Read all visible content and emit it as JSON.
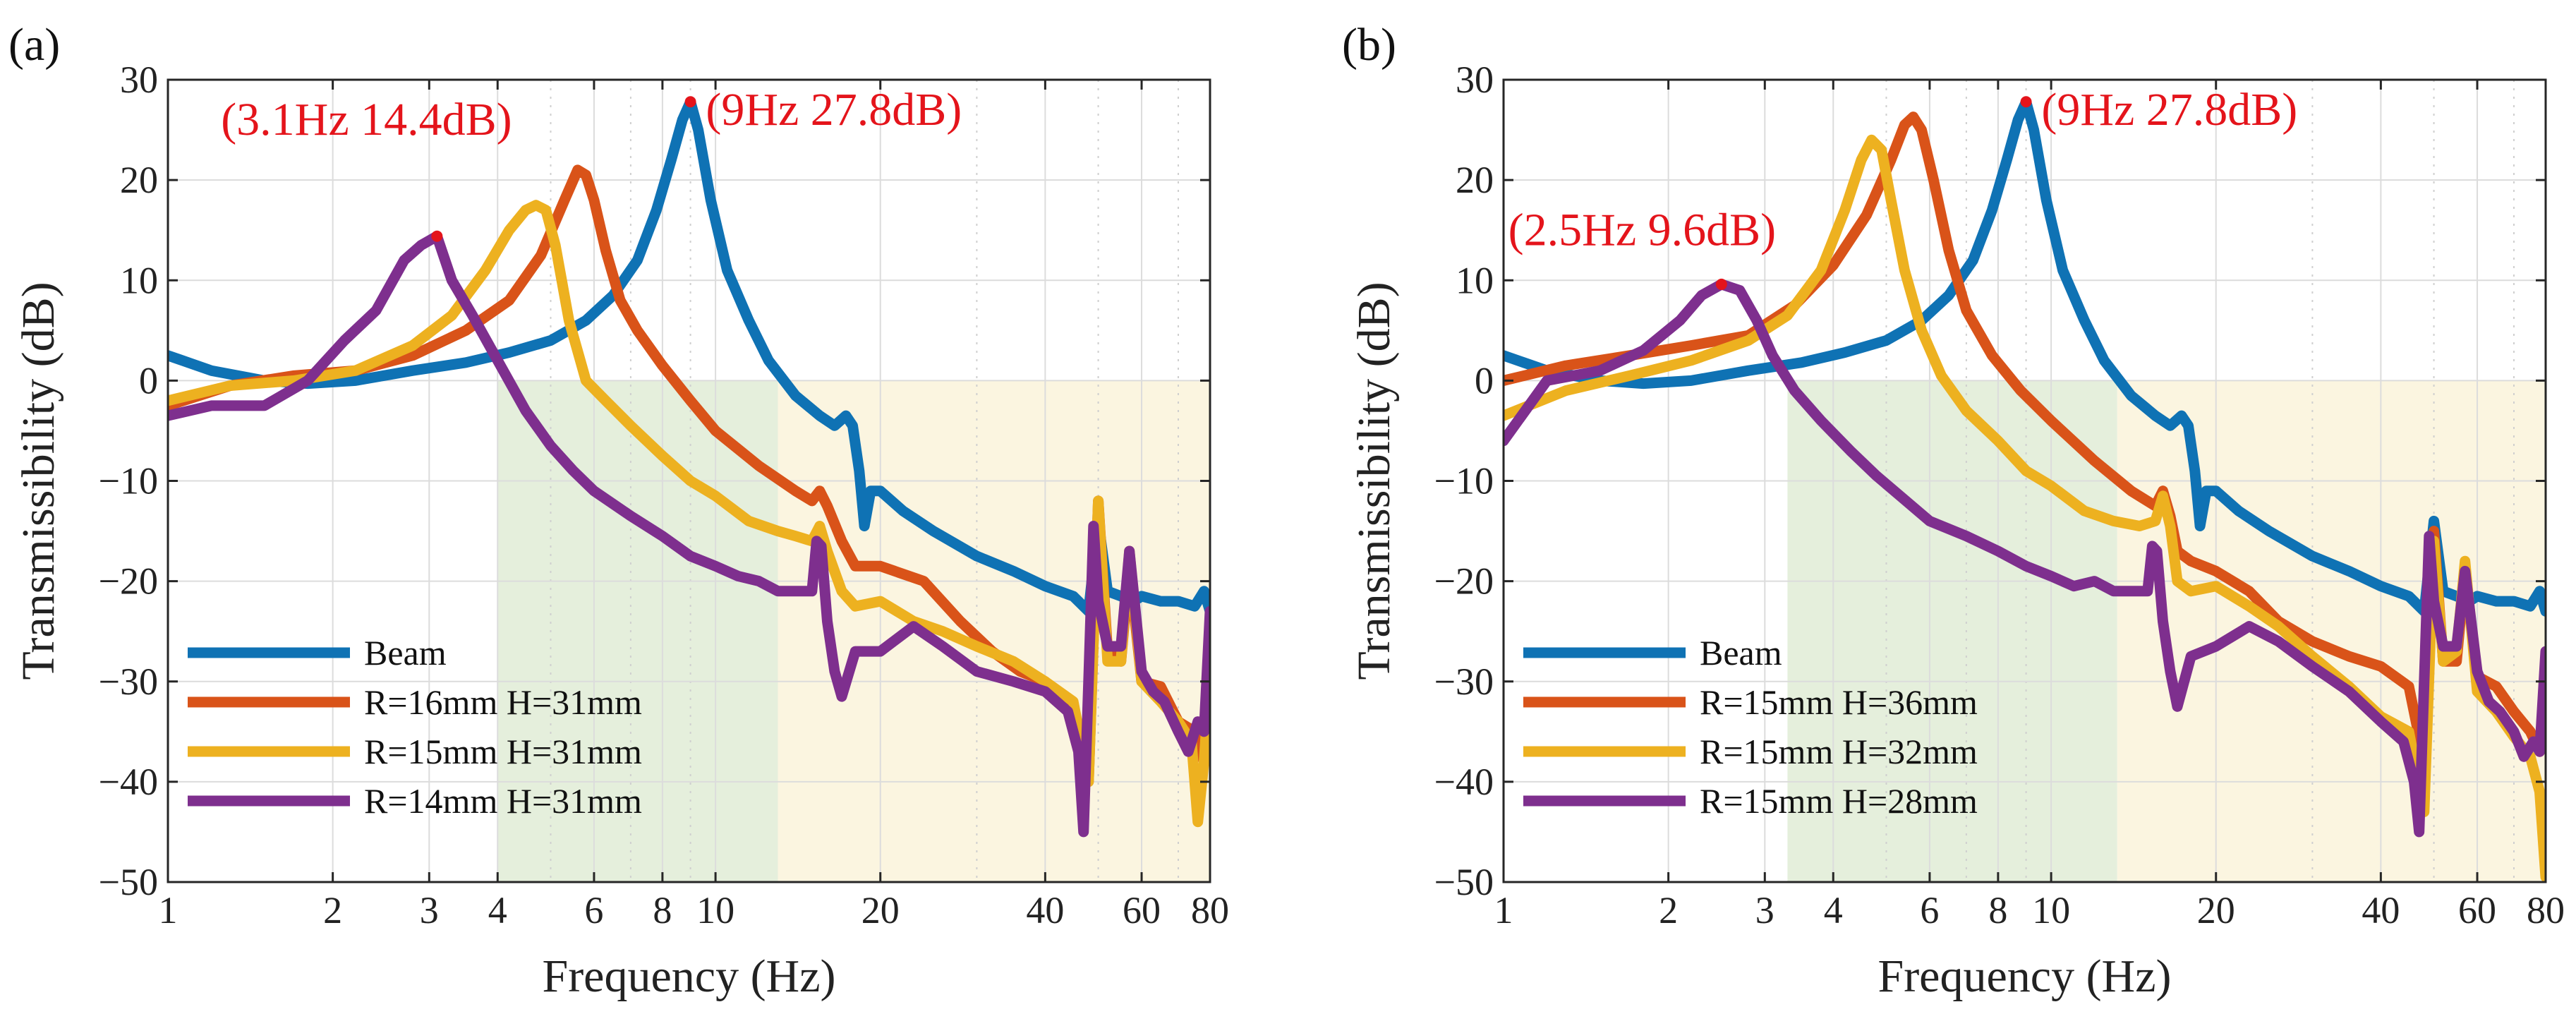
{
  "colors": {
    "beam": "#0f72b4",
    "orange": "#d95319",
    "yellow": "#edb120",
    "purple": "#7e2f8e",
    "annotation": "#e4141b",
    "green_band": "#e5efdc",
    "yellow_band": "#fbf5e0"
  },
  "chart_data": [
    {
      "panel": "(a)",
      "type": "line",
      "xscale": "log",
      "xlim": [
        1,
        80
      ],
      "ylim": [
        -50,
        30
      ],
      "xlabel": "Frequency (Hz)",
      "ylabel": "Transmissibility (dB)",
      "xticks": [
        1,
        2,
        3,
        4,
        6,
        8,
        10,
        20,
        40,
        60,
        80
      ],
      "xtick_labels": [
        "1",
        "2",
        "3",
        "4",
        "6",
        "8",
        "10",
        "20",
        "40",
        "60",
        "80"
      ],
      "yticks": [
        -50,
        -40,
        -30,
        -20,
        -10,
        0,
        10,
        20,
        30
      ],
      "ytick_labels": [
        "−50",
        "−40",
        "−30",
        "−20",
        "−10",
        "0",
        "10",
        "20",
        "30"
      ],
      "grid": true,
      "legend_position": "bottom-left",
      "bands": [
        {
          "x0": 4.0,
          "x1": 13.0,
          "y0": -50,
          "y1": 0,
          "color": "green_band"
        },
        {
          "x0": 13.0,
          "x1": 80,
          "y0": -50,
          "y1": 0,
          "color": "yellow_band"
        }
      ],
      "annotations": [
        {
          "text": "(3.1Hz 14.4dB)",
          "x": 3.1,
          "y": 14.4,
          "label_at": [
            1.25,
            24.5
          ]
        },
        {
          "text": "(9Hz 27.8dB)",
          "x": 9.0,
          "y": 27.8,
          "label_at": [
            9.6,
            25.5
          ]
        }
      ],
      "series": [
        {
          "name": "Beam",
          "color": "beam",
          "x": [
            1,
            1.2,
            1.5,
            1.8,
            2.2,
            2.8,
            3.5,
            4.2,
            5,
            5.8,
            6.5,
            7.2,
            7.8,
            8.3,
            8.7,
            9.0,
            9.3,
            9.8,
            10.5,
            11.5,
            12.5,
            14,
            15.5,
            16.5,
            17.3,
            17.8,
            18.3,
            18.7,
            19.2,
            20,
            22,
            25,
            30,
            35,
            40,
            45,
            48,
            50,
            52,
            55,
            58,
            60,
            65,
            70,
            75,
            78,
            80
          ],
          "y": [
            2.5,
            1.0,
            0,
            -0.3,
            0,
            1.0,
            1.8,
            2.8,
            4.0,
            6.0,
            8.5,
            12.0,
            17.0,
            22.0,
            26.0,
            27.8,
            25.0,
            18.0,
            11.0,
            6.0,
            2.0,
            -1.5,
            -3.5,
            -4.5,
            -3.5,
            -4.5,
            -9.0,
            -14.5,
            -11.0,
            -11.0,
            -13.0,
            -15.0,
            -17.5,
            -19.0,
            -20.5,
            -21.5,
            -23.0,
            -14.0,
            -21.0,
            -21.5,
            -22.0,
            -21.5,
            -22.0,
            -22.0,
            -22.5,
            -21.0,
            -23.0
          ]
        },
        {
          "name": "R=16mm H=31mm",
          "color": "orange",
          "x": [
            1,
            1.3,
            1.7,
            2.2,
            2.8,
            3.5,
            4.2,
            4.8,
            5.3,
            5.6,
            5.8,
            6.0,
            6.3,
            6.7,
            7.2,
            8.0,
            9.0,
            10,
            12,
            14,
            15,
            15.5,
            16,
            17,
            18,
            20,
            24,
            28,
            32,
            36,
            40,
            44,
            46,
            48,
            50,
            52,
            55,
            57,
            60,
            65,
            70,
            75,
            78,
            80
          ],
          "y": [
            -2.5,
            -0.5,
            0.5,
            1.0,
            2.5,
            5.0,
            8.0,
            12.5,
            18.0,
            21.0,
            20.5,
            18.0,
            13.0,
            8.0,
            5.0,
            1.5,
            -2.0,
            -5.0,
            -8.5,
            -11.0,
            -12.0,
            -11.0,
            -12.5,
            -16.0,
            -18.5,
            -18.5,
            -20.0,
            -24.0,
            -27.0,
            -29.0,
            -30.0,
            -33.0,
            -36.0,
            -40.0,
            -12.0,
            -27.0,
            -28.0,
            -18.5,
            -30.0,
            -30.5,
            -34.0,
            -35.0,
            -38.0,
            -29.0
          ]
        },
        {
          "name": "R=15mm H=31mm",
          "color": "yellow",
          "x": [
            1,
            1.3,
            1.7,
            2.2,
            2.8,
            3.3,
            3.8,
            4.2,
            4.5,
            4.7,
            4.9,
            5.1,
            5.4,
            5.8,
            6.3,
            7.0,
            8.0,
            9.0,
            10,
            11.5,
            13,
            14,
            15,
            15.5,
            16,
            17,
            18,
            20,
            23,
            26,
            30,
            35,
            40,
            45,
            48,
            50,
            52,
            55,
            57,
            60,
            65,
            70,
            74,
            76,
            78,
            80
          ],
          "y": [
            -2.0,
            -0.5,
            0,
            1.0,
            3.5,
            6.5,
            11.0,
            15.0,
            17.0,
            17.5,
            17.0,
            13.5,
            6.0,
            0,
            -2.0,
            -4.5,
            -7.5,
            -10.0,
            -11.5,
            -14.0,
            -15.0,
            -15.5,
            -16.0,
            -14.5,
            -17.0,
            -21.0,
            -22.5,
            -22.0,
            -24.0,
            -25.0,
            -26.5,
            -28.0,
            -30.0,
            -32.0,
            -40.0,
            -12.0,
            -28.0,
            -28.0,
            -17.0,
            -30.0,
            -32.0,
            -34.0,
            -36.0,
            -44.0,
            -38.0,
            -29.0
          ]
        },
        {
          "name": "R=14mm H=31mm",
          "color": "purple",
          "x": [
            1,
            1.2,
            1.5,
            1.8,
            2.1,
            2.4,
            2.7,
            2.9,
            3.1,
            3.3,
            3.6,
            4.0,
            4.5,
            5.0,
            5.5,
            6.0,
            7.0,
            8.0,
            9.0,
            10,
            11,
            12,
            13,
            14,
            15,
            15.3,
            15.6,
            16,
            16.5,
            17,
            18,
            20,
            23,
            26,
            30,
            35,
            40,
            44,
            46,
            47,
            48,
            49,
            50,
            52,
            55,
            57,
            60,
            63,
            66,
            70,
            73,
            76,
            78,
            80
          ],
          "y": [
            -3.5,
            -2.5,
            -2.5,
            0,
            4.0,
            7.0,
            12.0,
            13.5,
            14.4,
            10.0,
            6.5,
            2.0,
            -3.0,
            -6.5,
            -9.0,
            -11.0,
            -13.5,
            -15.5,
            -17.5,
            -18.5,
            -19.5,
            -20.0,
            -21.0,
            -21.0,
            -21.0,
            -16.0,
            -16.5,
            -24.0,
            -29.0,
            -31.5,
            -27.0,
            -27.0,
            -24.5,
            -26.5,
            -29.0,
            -30.0,
            -31.0,
            -33.0,
            -37.0,
            -45.0,
            -30.0,
            -14.5,
            -22.0,
            -26.5,
            -26.5,
            -17.0,
            -29.0,
            -31.0,
            -32.0,
            -35.0,
            -37.0,
            -34.0,
            -35.0,
            -23.0
          ]
        }
      ]
    },
    {
      "panel": "(b)",
      "type": "line",
      "xscale": "log",
      "xlim": [
        1,
        80
      ],
      "ylim": [
        -50,
        30
      ],
      "xlabel": "Frequency (Hz)",
      "ylabel": "Transmissibility (dB)",
      "xticks": [
        1,
        2,
        3,
        4,
        6,
        8,
        10,
        20,
        40,
        60,
        80
      ],
      "xtick_labels": [
        "1",
        "2",
        "3",
        "4",
        "6",
        "8",
        "10",
        "20",
        "40",
        "60",
        "80"
      ],
      "yticks": [
        -50,
        -40,
        -30,
        -20,
        -10,
        0,
        10,
        20,
        30
      ],
      "ytick_labels": [
        "−50",
        "−40",
        "−30",
        "−20",
        "−10",
        "0",
        "10",
        "20",
        "30"
      ],
      "grid": true,
      "legend_position": "bottom-left",
      "bands": [
        {
          "x0": 3.3,
          "x1": 13.2,
          "y0": -50,
          "y1": 0,
          "color": "green_band"
        },
        {
          "x0": 13.2,
          "x1": 80,
          "y0": -50,
          "y1": 0,
          "color": "yellow_band"
        }
      ],
      "annotations": [
        {
          "text": "(2.5Hz 9.6dB)",
          "x": 2.5,
          "y": 9.6,
          "label_at": [
            1.02,
            13.5
          ]
        },
        {
          "text": "(9Hz 27.8dB)",
          "x": 9.0,
          "y": 27.8,
          "label_at": [
            9.6,
            25.5
          ]
        }
      ],
      "series": [
        {
          "name": "Beam",
          "color": "beam",
          "x": [
            1,
            1.2,
            1.5,
            1.8,
            2.2,
            2.8,
            3.5,
            4.2,
            5,
            5.8,
            6.5,
            7.2,
            7.8,
            8.3,
            8.7,
            9.0,
            9.3,
            9.8,
            10.5,
            11.5,
            12.5,
            14,
            15.5,
            16.5,
            17.3,
            17.8,
            18.3,
            18.7,
            19.2,
            20,
            22,
            25,
            30,
            35,
            40,
            45,
            48,
            50,
            52,
            55,
            58,
            60,
            65,
            70,
            75,
            78,
            80
          ],
          "y": [
            2.5,
            1.0,
            0,
            -0.3,
            0,
            1.0,
            1.8,
            2.8,
            4.0,
            6.0,
            8.5,
            12.0,
            17.0,
            22.0,
            26.0,
            27.8,
            25.0,
            18.0,
            11.0,
            6.0,
            2.0,
            -1.5,
            -3.5,
            -4.5,
            -3.5,
            -4.5,
            -9.0,
            -14.5,
            -11.0,
            -11.0,
            -13.0,
            -15.0,
            -17.5,
            -19.0,
            -20.5,
            -21.5,
            -23.0,
            -14.0,
            -21.0,
            -21.5,
            -22.0,
            -21.5,
            -22.0,
            -22.0,
            -22.5,
            -21.0,
            -23.0
          ]
        },
        {
          "name": "R=15mm H=36mm",
          "color": "orange",
          "x": [
            1,
            1.3,
            1.7,
            2.2,
            2.8,
            3.4,
            4.0,
            4.6,
            5.1,
            5.4,
            5.6,
            5.8,
            6.1,
            6.5,
            7.0,
            7.8,
            8.8,
            10,
            12,
            14,
            15.5,
            16,
            16.5,
            17,
            18,
            20,
            23,
            26,
            30,
            35,
            40,
            45,
            48,
            50,
            52,
            55,
            57,
            60,
            65,
            70,
            75,
            78,
            80
          ],
          "y": [
            0,
            1.5,
            2.5,
            3.5,
            4.5,
            7.5,
            11.5,
            16.5,
            22.0,
            25.5,
            26.3,
            25.0,
            20.0,
            13.0,
            7.0,
            2.5,
            -1.0,
            -4.0,
            -8.0,
            -11.0,
            -12.5,
            -11.0,
            -13.5,
            -17.0,
            -18.0,
            -19.0,
            -21.0,
            -24.0,
            -26.0,
            -27.5,
            -28.5,
            -30.5,
            -38.0,
            -15.0,
            -28.0,
            -28.0,
            -19.0,
            -29.5,
            -30.5,
            -33.0,
            -35.0,
            -37.0,
            -29.0
          ]
        },
        {
          "name": "R=15mm H=32mm",
          "color": "yellow",
          "x": [
            1,
            1.3,
            1.7,
            2.2,
            2.8,
            3.3,
            3.8,
            4.2,
            4.5,
            4.7,
            4.9,
            5.1,
            5.4,
            5.8,
            6.3,
            7.0,
            8.0,
            9.0,
            10,
            11.5,
            13,
            14.5,
            15.5,
            16,
            16.5,
            17,
            18,
            20,
            23,
            26,
            30,
            35,
            40,
            45,
            48,
            50,
            52,
            55,
            57,
            60,
            65,
            70,
            75,
            78,
            80
          ],
          "y": [
            -3.5,
            -1.0,
            0.5,
            2.0,
            4.0,
            6.5,
            11.0,
            17.0,
            22.0,
            24.0,
            23.0,
            18.0,
            11.0,
            5.0,
            0.5,
            -3.0,
            -6.0,
            -9.0,
            -10.5,
            -13.0,
            -14.0,
            -14.5,
            -14.0,
            -11.5,
            -14.5,
            -20.0,
            -21.0,
            -20.5,
            -22.5,
            -24.5,
            -27.5,
            -30.5,
            -33.5,
            -35.0,
            -43.0,
            -16.0,
            -28.0,
            -27.0,
            -18.0,
            -31.0,
            -33.0,
            -35.5,
            -37.5,
            -41.0,
            -49.5
          ]
        },
        {
          "name": "R=15mm H=28mm",
          "color": "purple",
          "x": [
            1,
            1.2,
            1.5,
            1.8,
            2.1,
            2.3,
            2.5,
            2.7,
            2.9,
            3.1,
            3.4,
            3.8,
            4.3,
            4.8,
            5.3,
            6.0,
            7.0,
            8.0,
            9.0,
            10,
            11,
            12,
            13,
            14,
            15,
            15.3,
            15.6,
            16,
            16.5,
            17,
            18,
            20,
            23,
            26,
            30,
            35,
            40,
            44,
            46,
            47,
            48,
            49,
            50,
            52,
            55,
            57,
            60,
            63,
            66,
            70,
            73,
            76,
            78,
            80
          ],
          "y": [
            -6.0,
            0,
            1.0,
            3.0,
            6.0,
            8.5,
            9.6,
            9.0,
            6.0,
            2.5,
            -1.0,
            -4.0,
            -7.0,
            -9.5,
            -11.5,
            -14.0,
            -15.5,
            -17.0,
            -18.5,
            -19.5,
            -20.5,
            -20.0,
            -21.0,
            -21.0,
            -21.0,
            -16.5,
            -17.0,
            -24.0,
            -29.0,
            -32.5,
            -27.5,
            -26.5,
            -24.5,
            -26.0,
            -28.5,
            -31.0,
            -34.0,
            -36.0,
            -40.0,
            -45.0,
            -30.0,
            -15.5,
            -22.0,
            -26.5,
            -26.5,
            -19.0,
            -29.0,
            -32.0,
            -33.0,
            -35.0,
            -37.5,
            -36.0,
            -37.0,
            -27.0
          ]
        }
      ]
    }
  ]
}
